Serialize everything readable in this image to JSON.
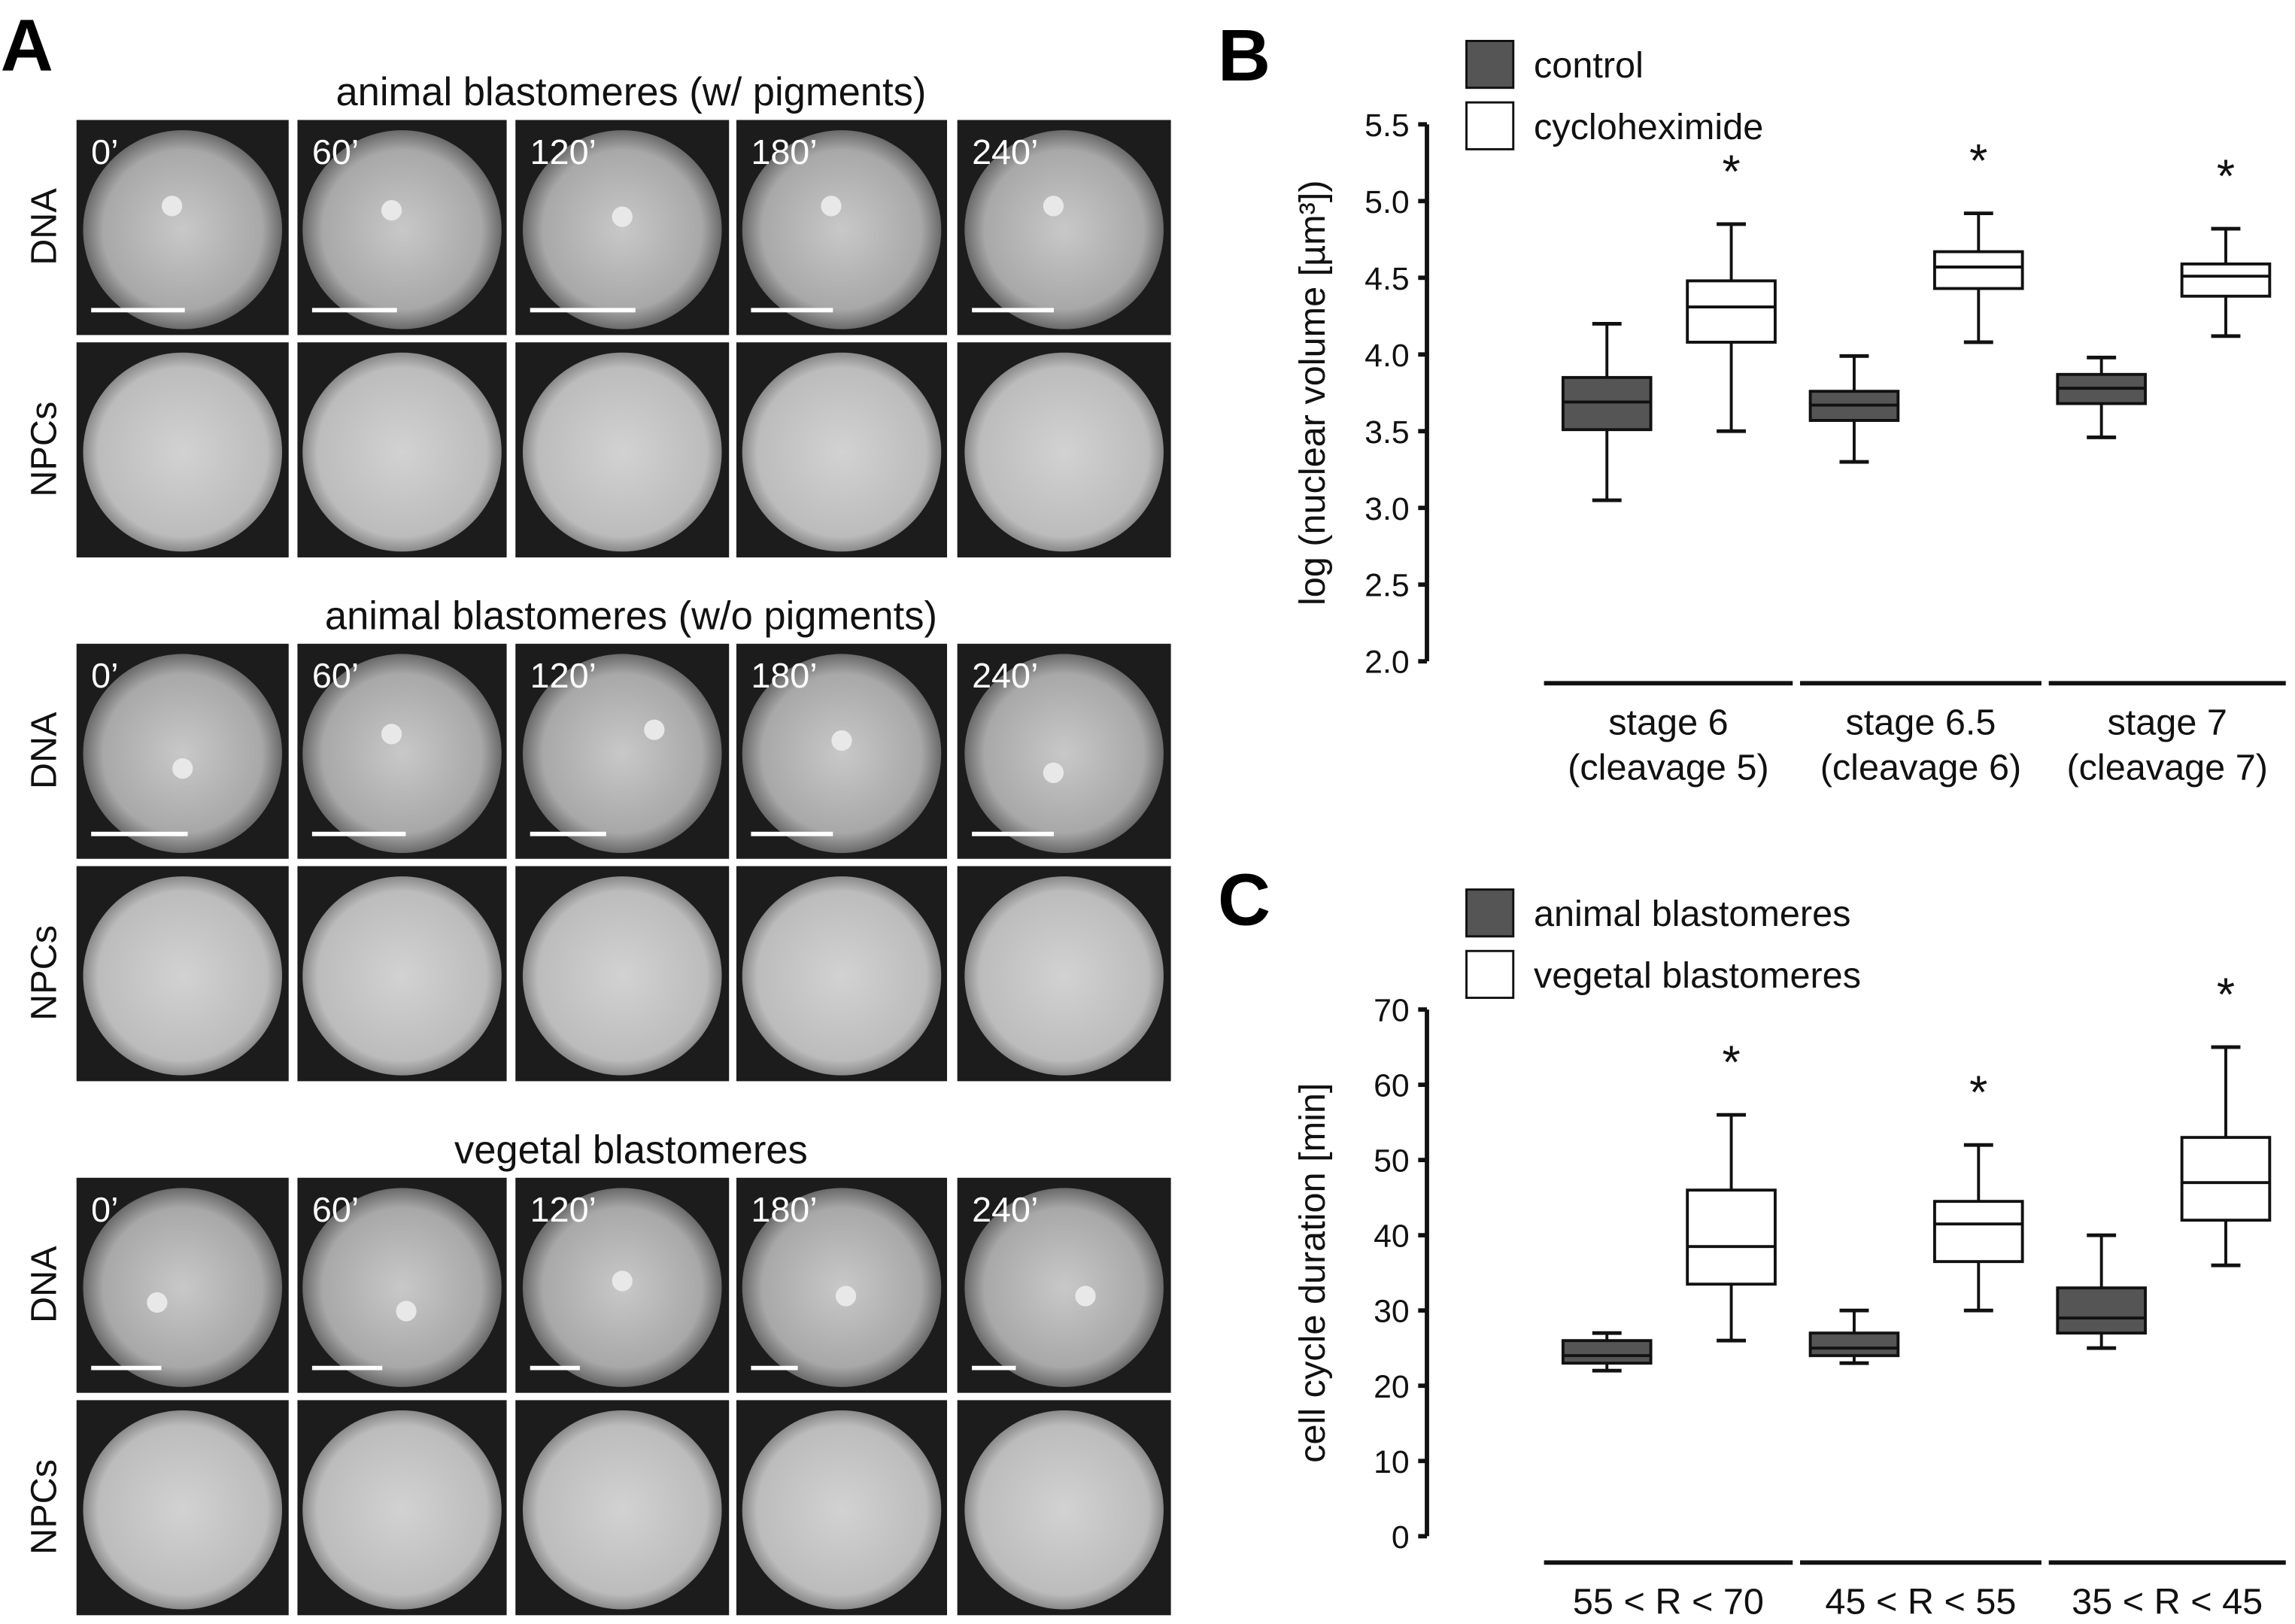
{
  "panel_letters": {
    "a": "A",
    "b": "B",
    "c": "C"
  },
  "panel_a": {
    "row_labels": [
      "DNA",
      "NPCs"
    ],
    "timepoints": [
      "0’",
      "60’",
      "120’",
      "180’",
      "240’"
    ],
    "sections": [
      {
        "title": "animal blastomeres (w/ pigments)"
      },
      {
        "title": "animal blastomeres (w/o pigments)"
      },
      {
        "title": "vegetal blastomeres"
      }
    ]
  },
  "chart_data": [
    {
      "type": "box",
      "panel": "B",
      "ylabel": "log (nuclear volume [µm³])",
      "ylim": [
        2.0,
        5.5
      ],
      "yticks": [
        "2.0",
        "2.5",
        "3.0",
        "3.5",
        "4.0",
        "4.5",
        "5.0",
        "5.5"
      ],
      "legend": {
        "placement": "top-left",
        "entries": [
          "control",
          "cycloheximide"
        ]
      },
      "categories": [
        [
          "stage 6",
          "(cleavage 5)"
        ],
        [
          "stage 6.5",
          "(cleavage 6)"
        ],
        [
          "stage 7",
          "(cleavage 7)"
        ]
      ],
      "series": [
        {
          "name": "control",
          "color": "#555555",
          "boxes": [
            {
              "min": 3.05,
              "q1": 3.51,
              "median": 3.69,
              "q3": 3.85,
              "max": 4.2
            },
            {
              "min": 3.3,
              "q1": 3.57,
              "median": 3.67,
              "q3": 3.76,
              "max": 3.99
            },
            {
              "min": 3.46,
              "q1": 3.68,
              "median": 3.78,
              "q3": 3.87,
              "max": 3.98
            }
          ]
        },
        {
          "name": "cycloheximide",
          "color": "#ffffff",
          "boxes": [
            {
              "min": 3.5,
              "q1": 4.08,
              "median": 4.31,
              "q3": 4.48,
              "max": 4.85
            },
            {
              "min": 4.08,
              "q1": 4.43,
              "median": 4.57,
              "q3": 4.67,
              "max": 4.92
            },
            {
              "min": 4.12,
              "q1": 4.38,
              "median": 4.51,
              "q3": 4.59,
              "max": 4.82
            }
          ]
        }
      ],
      "significance": "*"
    },
    {
      "type": "box",
      "panel": "C",
      "ylabel": "cell cycle duration [min]",
      "ylim": [
        0,
        70
      ],
      "yticks": [
        "0",
        "10",
        "20",
        "30",
        "40",
        "50",
        "60",
        "70"
      ],
      "legend": {
        "placement": "top-left",
        "entries": [
          "animal blastomeres",
          "vegetal blastomeres"
        ]
      },
      "categories": [
        [
          "55 < R < 70"
        ],
        [
          "45 < R < 55"
        ],
        [
          "35 < R < 45"
        ]
      ],
      "series": [
        {
          "name": "animal blastomeres",
          "color": "#555555",
          "boxes": [
            {
              "min": 22,
              "q1": 23,
              "median": 24,
              "q3": 26,
              "max": 27
            },
            {
              "min": 23,
              "q1": 24,
              "median": 25,
              "q3": 27,
              "max": 30
            },
            {
              "min": 25,
              "q1": 27,
              "median": 29,
              "q3": 33,
              "max": 40
            }
          ]
        },
        {
          "name": "vegetal blastomeres",
          "color": "#ffffff",
          "boxes": [
            {
              "min": 26,
              "q1": 33.5,
              "median": 38.5,
              "q3": 46,
              "max": 56
            },
            {
              "min": 30,
              "q1": 36.5,
              "median": 41.5,
              "q3": 44.5,
              "max": 52
            },
            {
              "min": 36,
              "q1": 42,
              "median": 47,
              "q3": 53,
              "max": 65
            }
          ]
        }
      ],
      "significance": "*"
    }
  ]
}
